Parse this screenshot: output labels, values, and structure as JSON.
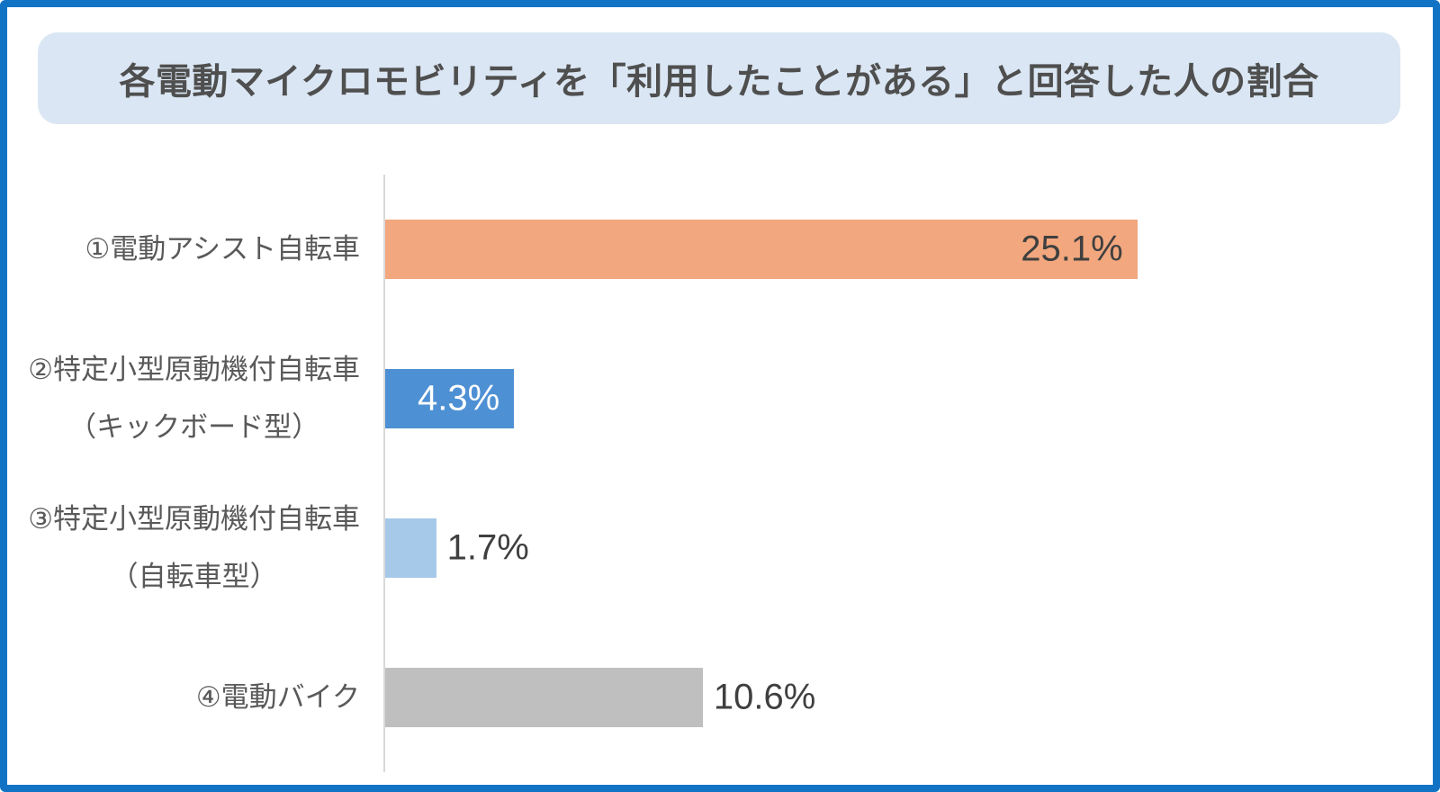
{
  "title": {
    "text": "各電動マイクロモビリティを「利用したことがある」と回答した人の割合"
  },
  "chart_data": {
    "type": "bar",
    "orientation": "horizontal",
    "title": "各電動マイクロモビリティを「利用したことがある」と回答した人の割合",
    "categories": [
      [
        "①電動アシスト自転車"
      ],
      [
        "②特定小型原動機付自転車",
        "（キックボード型）"
      ],
      [
        "③特定小型原動機付自転車",
        "（自転車型）"
      ],
      [
        "④電動バイク"
      ]
    ],
    "values": [
      25.1,
      4.3,
      1.7,
      10.6
    ],
    "value_labels": [
      "25.1%",
      "4.3%",
      "1.7%",
      "10.6%"
    ],
    "unit": "%",
    "xlim": [
      0,
      34
    ],
    "grid": false,
    "legend": false,
    "bar_colors": [
      "#F2A77E",
      "#4E90D4",
      "#A6C9EA",
      "#BFBFBF"
    ],
    "value_label_colors": [
      "#3F3F3F",
      "#FFFFFF",
      "#3F3F3F",
      "#3F3F3F"
    ],
    "value_label_placement": [
      "inside",
      "inside",
      "outside",
      "outside"
    ],
    "axis_line_color": "#D9D9D9"
  },
  "frame": {
    "border_color": "#1273C4",
    "banner_bg": "#DAE6F3",
    "background": "#FFFFFF"
  }
}
